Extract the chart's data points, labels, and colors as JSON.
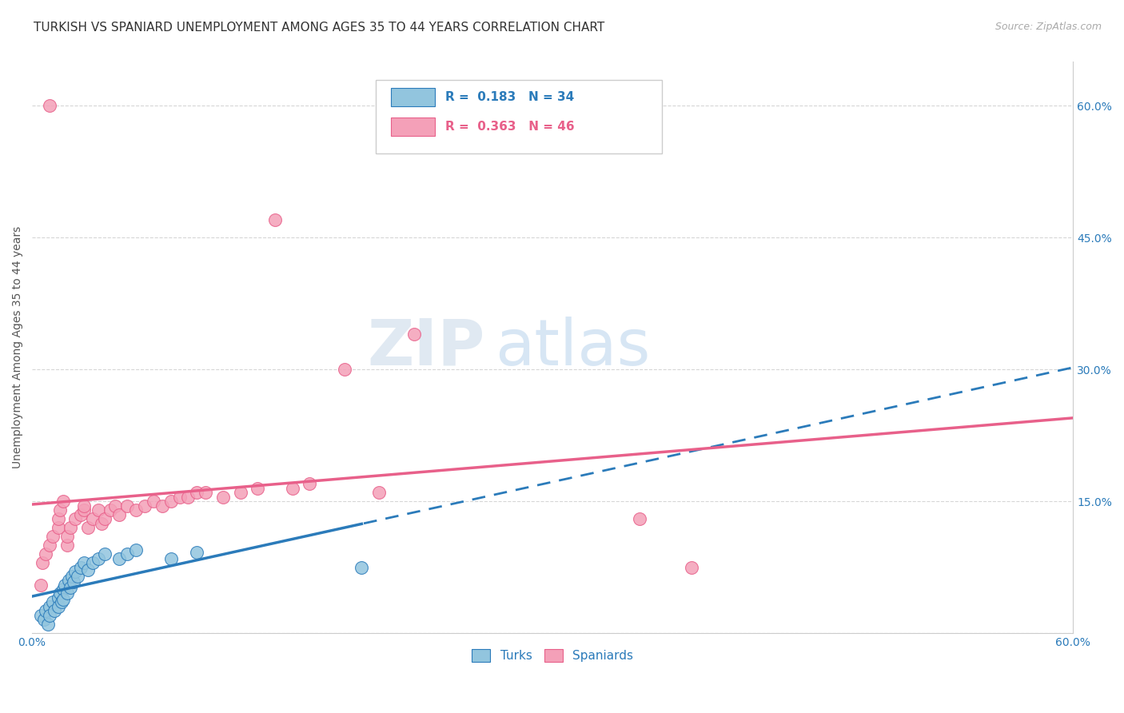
{
  "title": "TURKISH VS SPANIARD UNEMPLOYMENT AMONG AGES 35 TO 44 YEARS CORRELATION CHART",
  "source": "Source: ZipAtlas.com",
  "ylabel": "Unemployment Among Ages 35 to 44 years",
  "xlim": [
    0,
    0.6
  ],
  "ylim": [
    0,
    0.65
  ],
  "yticks": [
    0.0,
    0.15,
    0.3,
    0.45,
    0.6
  ],
  "yticklabels": [
    "",
    "15.0%",
    "30.0%",
    "45.0%",
    "60.0%"
  ],
  "xtick_positions": [
    0.0,
    0.1,
    0.2,
    0.3,
    0.4,
    0.5,
    0.6
  ],
  "xticklabels": [
    "0.0%",
    "",
    "",
    "",
    "",
    "",
    "60.0%"
  ],
  "turks_R": "0.183",
  "turks_N": "34",
  "spaniards_R": "0.363",
  "spaniards_N": "46",
  "turks_color": "#92c5de",
  "spaniards_color": "#f4a0b8",
  "turks_line_color": "#2b7bba",
  "spaniards_line_color": "#e8608a",
  "background_color": "#ffffff",
  "grid_color": "#cccccc",
  "turks_x": [
    0.005,
    0.007,
    0.008,
    0.009,
    0.01,
    0.01,
    0.012,
    0.013,
    0.015,
    0.015,
    0.016,
    0.017,
    0.018,
    0.018,
    0.019,
    0.02,
    0.021,
    0.022,
    0.023,
    0.024,
    0.025,
    0.026,
    0.028,
    0.03,
    0.032,
    0.035,
    0.038,
    0.042,
    0.05,
    0.055,
    0.06,
    0.08,
    0.095,
    0.19
  ],
  "turks_y": [
    0.02,
    0.015,
    0.025,
    0.01,
    0.03,
    0.02,
    0.035,
    0.025,
    0.04,
    0.03,
    0.045,
    0.035,
    0.05,
    0.038,
    0.055,
    0.045,
    0.06,
    0.052,
    0.065,
    0.058,
    0.07,
    0.065,
    0.075,
    0.08,
    0.072,
    0.08,
    0.085,
    0.09,
    0.085,
    0.09,
    0.095,
    0.085,
    0.092,
    0.075
  ],
  "spaniards_x": [
    0.005,
    0.006,
    0.008,
    0.01,
    0.01,
    0.012,
    0.015,
    0.015,
    0.016,
    0.018,
    0.02,
    0.02,
    0.022,
    0.025,
    0.028,
    0.03,
    0.03,
    0.032,
    0.035,
    0.038,
    0.04,
    0.042,
    0.045,
    0.048,
    0.05,
    0.055,
    0.06,
    0.065,
    0.07,
    0.075,
    0.08,
    0.085,
    0.09,
    0.095,
    0.1,
    0.11,
    0.12,
    0.13,
    0.14,
    0.15,
    0.16,
    0.18,
    0.2,
    0.22,
    0.35,
    0.38
  ],
  "spaniards_y": [
    0.055,
    0.08,
    0.09,
    0.1,
    0.6,
    0.11,
    0.12,
    0.13,
    0.14,
    0.15,
    0.1,
    0.11,
    0.12,
    0.13,
    0.135,
    0.14,
    0.145,
    0.12,
    0.13,
    0.14,
    0.125,
    0.13,
    0.14,
    0.145,
    0.135,
    0.145,
    0.14,
    0.145,
    0.15,
    0.145,
    0.15,
    0.155,
    0.155,
    0.16,
    0.16,
    0.155,
    0.16,
    0.165,
    0.47,
    0.165,
    0.17,
    0.3,
    0.16,
    0.34,
    0.13,
    0.075
  ],
  "watermark_zip_color": "#c8d8e8",
  "watermark_atlas_color": "#a8c8e8",
  "title_fontsize": 11,
  "label_fontsize": 10,
  "tick_fontsize": 10,
  "legend_fontsize": 11
}
